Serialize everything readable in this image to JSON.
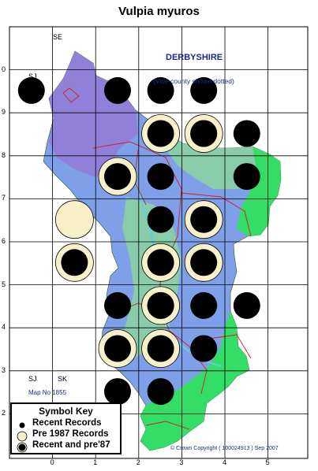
{
  "title": "Vulpia myuros",
  "county": {
    "name": "DERBYSHIRE",
    "note": "(Vice-county shown dotted)"
  },
  "grid_labels": {
    "se": "SE",
    "sj_top": "SJ",
    "sj_bottom": "SJ",
    "sk": "SK"
  },
  "map_number": "Map No 1855",
  "copyright": "© Crown Copyright ( 100024913 ) Sep 2007",
  "axis": {
    "x_ticks": [
      "0",
      "1",
      "2",
      "3",
      "4",
      "5"
    ],
    "y_ticks": [
      "0",
      "9",
      "8",
      "7",
      "6",
      "5",
      "4",
      "3",
      "2"
    ]
  },
  "key": {
    "title": "Symbol Key",
    "recent": "Recent Records",
    "pre1987": "Pre 1987 Records",
    "both": "Recent and pre'87"
  },
  "colors": {
    "frame": "#000000",
    "grid": "#000000",
    "county_text": "#1a2a8a",
    "pre1987_fill": "#f8f0c8",
    "record": "#000000",
    "boundary": "#cc2222",
    "low_land": "#33dd66",
    "mid_land": "#88ccaa",
    "high_land": "#7fa0e8",
    "peak_land": "#9080d8",
    "river": "#5fd0e0"
  },
  "records": {
    "recent": [
      [
        0,
        8
      ],
      [
        2,
        8
      ],
      [
        3,
        8
      ],
      [
        4,
        8
      ],
      [
        4,
        7
      ],
      [
        5,
        7
      ],
      [
        3,
        6
      ],
      [
        3,
        6
      ],
      [
        5,
        6
      ],
      [
        3,
        5
      ],
      [
        2,
        3
      ],
      [
        3,
        3
      ],
      [
        4,
        3
      ],
      [
        5,
        3
      ],
      [
        4,
        2
      ],
      [
        2,
        1
      ],
      [
        3,
        1
      ]
    ],
    "pre1987": [
      [
        1,
        5
      ]
    ],
    "both": [
      [
        3,
        7
      ],
      [
        4,
        7
      ],
      [
        2,
        6
      ],
      [
        4,
        5
      ],
      [
        1,
        4
      ],
      [
        3,
        4
      ],
      [
        4,
        4
      ],
      [
        3,
        3
      ],
      [
        2,
        2
      ],
      [
        3,
        2
      ]
    ]
  }
}
